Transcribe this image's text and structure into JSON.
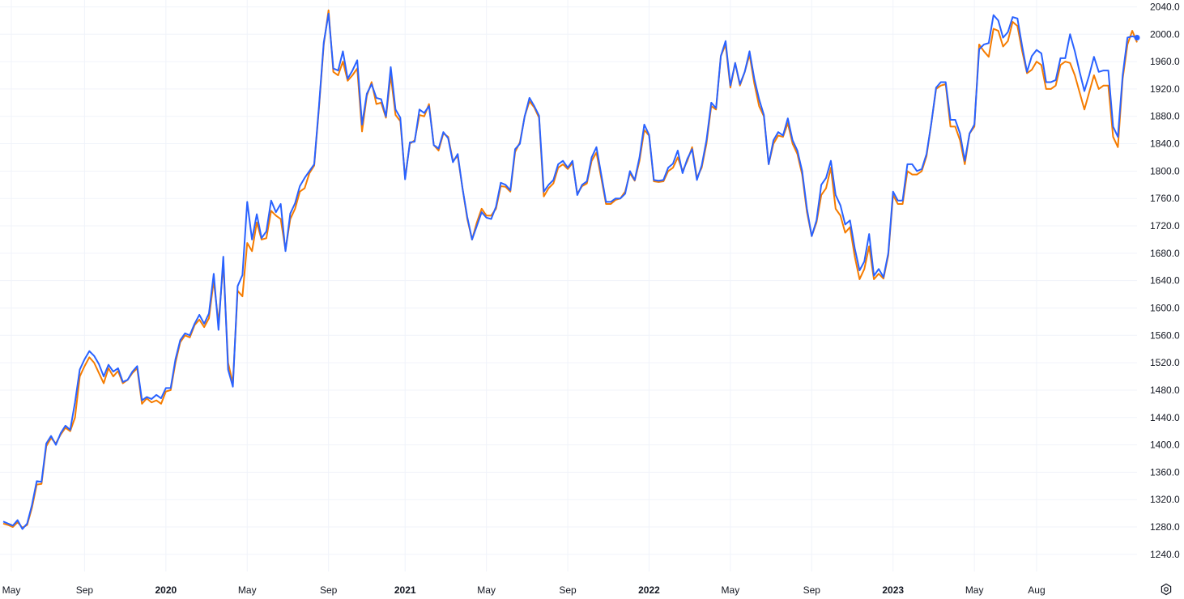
{
  "chart_data": {
    "type": "line",
    "ylim": [
      1215,
      2050
    ],
    "y_ticks": [
      "1240.0",
      "1280.0",
      "1320.0",
      "1360.0",
      "1400.0",
      "1440.0",
      "1480.0",
      "1520.0",
      "1560.0",
      "1600.0",
      "1640.0",
      "1680.0",
      "1720.0",
      "1760.0",
      "1800.0",
      "1840.0",
      "1880.0",
      "1920.0",
      "1960.0",
      "2000.0",
      "2040.0"
    ],
    "x_ticks": [
      {
        "label": "May",
        "index": 0,
        "year": false
      },
      {
        "label": "Sep",
        "index": 17,
        "year": false
      },
      {
        "label": "2020",
        "index": 34,
        "year": true
      },
      {
        "label": "May",
        "index": 51,
        "year": false
      },
      {
        "label": "Sep",
        "index": 68,
        "year": false
      },
      {
        "label": "2021",
        "index": 84,
        "year": true
      },
      {
        "label": "May",
        "index": 101,
        "year": false
      },
      {
        "label": "Sep",
        "index": 118,
        "year": false
      },
      {
        "label": "2022",
        "index": 135,
        "year": true
      },
      {
        "label": "May",
        "index": 152,
        "year": false
      },
      {
        "label": "Sep",
        "index": 169,
        "year": false
      },
      {
        "label": "2023",
        "index": 186,
        "year": true
      },
      {
        "label": "May",
        "index": 203,
        "year": false
      },
      {
        "label": "Aug",
        "index": 216,
        "year": false
      }
    ],
    "grid": true,
    "series": [
      {
        "color": "#f57c00",
        "values": [
          1285,
          1283,
          1280,
          1287,
          1279,
          1283,
          1308,
          1342,
          1343,
          1398,
          1410,
          1402,
          1415,
          1425,
          1420,
          1440,
          1500,
          1515,
          1528,
          1520,
          1505,
          1490,
          1512,
          1500,
          1508,
          1490,
          1495,
          1505,
          1512,
          1460,
          1468,
          1462,
          1465,
          1460,
          1478,
          1480,
          1520,
          1550,
          1560,
          1557,
          1575,
          1583,
          1572,
          1585,
          1640,
          1578,
          1665,
          1520,
          1490,
          1625,
          1617,
          1695,
          1683,
          1725,
          1700,
          1702,
          1742,
          1735,
          1730,
          1685,
          1730,
          1745,
          1770,
          1775,
          1797,
          1808,
          1892,
          1985,
          2035,
          1945,
          1940,
          1960,
          1932,
          1940,
          1950,
          1858,
          1910,
          1930,
          1898,
          1900,
          1878,
          1940,
          1882,
          1873,
          1790,
          1840,
          1845,
          1882,
          1880,
          1898,
          1838,
          1830,
          1855,
          1850,
          1815,
          1822,
          1775,
          1730,
          1700,
          1725,
          1745,
          1735,
          1735,
          1745,
          1778,
          1777,
          1770,
          1828,
          1842,
          1880,
          1902,
          1893,
          1878,
          1763,
          1775,
          1782,
          1805,
          1810,
          1803,
          1812,
          1767,
          1778,
          1782,
          1815,
          1827,
          1790,
          1752,
          1752,
          1758,
          1760,
          1770,
          1797,
          1786,
          1815,
          1860,
          1852,
          1785,
          1784,
          1785,
          1800,
          1805,
          1820,
          1800,
          1815,
          1835,
          1790,
          1805,
          1840,
          1895,
          1890,
          1968,
          1985,
          1922,
          1958,
          1925,
          1945,
          1970,
          1928,
          1895,
          1880,
          1810,
          1840,
          1852,
          1850,
          1870,
          1840,
          1825,
          1795,
          1740,
          1705,
          1725,
          1765,
          1775,
          1805,
          1745,
          1735,
          1710,
          1718,
          1675,
          1642,
          1657,
          1690,
          1642,
          1650,
          1643,
          1677,
          1765,
          1752,
          1752,
          1800,
          1795,
          1795,
          1800,
          1822,
          1870,
          1920,
          1925,
          1927,
          1865,
          1865,
          1845,
          1810,
          1855,
          1865,
          1985,
          1975,
          1967,
          2008,
          2005,
          1982,
          1990,
          2018,
          2012,
          1975,
          1943,
          1948,
          1960,
          1955,
          1920,
          1920,
          1925,
          1955,
          1960,
          1958,
          1940,
          1915,
          1890,
          1915,
          1940,
          1920,
          1925,
          1925,
          1850,
          1835,
          1935,
          1985,
          2005,
          1988
        ]
      },
      {
        "color": "#2962ff",
        "values": [
          1288,
          1285,
          1282,
          1290,
          1277,
          1285,
          1312,
          1347,
          1346,
          1402,
          1413,
          1400,
          1417,
          1428,
          1422,
          1462,
          1510,
          1525,
          1537,
          1530,
          1518,
          1500,
          1517,
          1507,
          1512,
          1492,
          1495,
          1507,
          1515,
          1465,
          1470,
          1467,
          1473,
          1468,
          1483,
          1483,
          1525,
          1553,
          1563,
          1560,
          1577,
          1590,
          1577,
          1592,
          1650,
          1568,
          1675,
          1510,
          1485,
          1632,
          1648,
          1755,
          1700,
          1737,
          1702,
          1712,
          1757,
          1740,
          1752,
          1683,
          1738,
          1753,
          1778,
          1790,
          1800,
          1810,
          1895,
          1988,
          2030,
          1950,
          1947,
          1975,
          1935,
          1947,
          1962,
          1868,
          1913,
          1927,
          1907,
          1905,
          1880,
          1952,
          1890,
          1878,
          1788,
          1842,
          1843,
          1890,
          1885,
          1895,
          1838,
          1833,
          1857,
          1848,
          1813,
          1825,
          1775,
          1733,
          1700,
          1720,
          1740,
          1732,
          1730,
          1748,
          1783,
          1780,
          1772,
          1832,
          1840,
          1880,
          1907,
          1895,
          1881,
          1770,
          1780,
          1787,
          1810,
          1815,
          1805,
          1815,
          1765,
          1780,
          1785,
          1820,
          1835,
          1795,
          1755,
          1755,
          1760,
          1760,
          1767,
          1800,
          1787,
          1820,
          1868,
          1853,
          1787,
          1786,
          1787,
          1805,
          1811,
          1830,
          1797,
          1818,
          1832,
          1787,
          1808,
          1845,
          1900,
          1892,
          1968,
          1990,
          1925,
          1958,
          1927,
          1945,
          1975,
          1935,
          1905,
          1882,
          1810,
          1845,
          1857,
          1852,
          1877,
          1845,
          1830,
          1800,
          1745,
          1705,
          1728,
          1780,
          1790,
          1815,
          1765,
          1750,
          1722,
          1728,
          1687,
          1655,
          1668,
          1708,
          1647,
          1657,
          1645,
          1680,
          1770,
          1757,
          1757,
          1810,
          1810,
          1800,
          1803,
          1825,
          1870,
          1922,
          1930,
          1930,
          1875,
          1875,
          1855,
          1815,
          1855,
          1868,
          1978,
          1985,
          1987,
          2028,
          2020,
          1995,
          2003,
          2025,
          2023,
          1982,
          1945,
          1968,
          1977,
          1972,
          1930,
          1930,
          1933,
          1965,
          1965,
          2000,
          1975,
          1945,
          1917,
          1940,
          1967,
          1945,
          1947,
          1947,
          1865,
          1850,
          1940,
          1995,
          1997,
          1995
        ]
      }
    ]
  },
  "icons": {
    "settings": "settings-gear-icon"
  }
}
